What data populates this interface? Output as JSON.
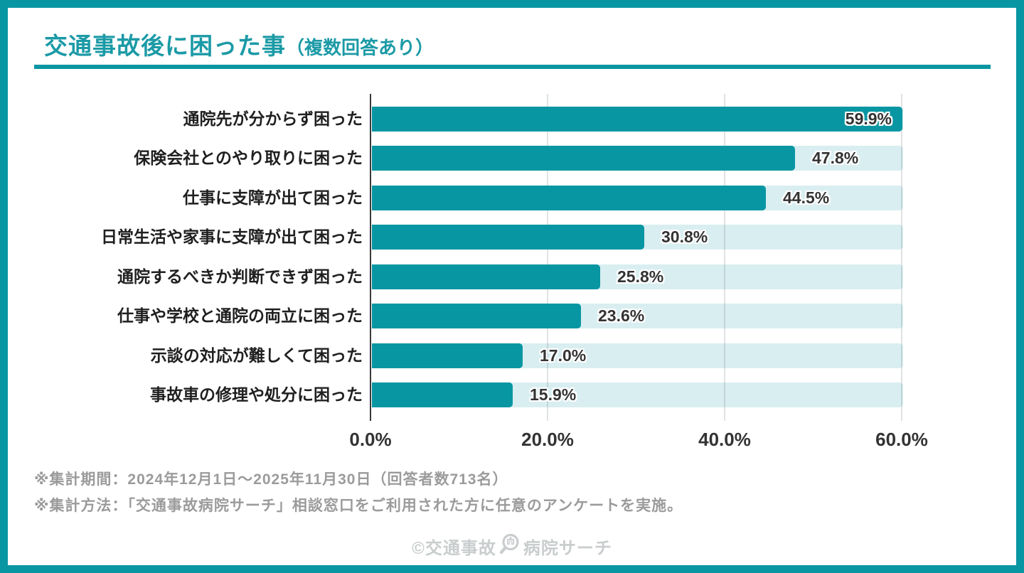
{
  "header": {
    "title": "交通事故後に困った事",
    "title_suffix": "（複数回答あり）"
  },
  "chart_data": {
    "type": "bar",
    "orientation": "horizontal",
    "title": "交通事故後に困った事（複数回答あり）",
    "categories": [
      "通院先が分からず困った",
      "保険会社とのやり取りに困った",
      "仕事に支障が出て困った",
      "日常生活や家事に支障が出て困った",
      "通院するべきか判断できず困った",
      "仕事や学校と通院の両立に困った",
      "示談の対応が難しくて困った",
      "事故車の修理や処分に困った"
    ],
    "values": [
      59.9,
      47.8,
      44.5,
      30.8,
      25.8,
      23.6,
      17.0,
      15.9
    ],
    "value_labels": [
      "59.9%",
      "47.8%",
      "44.5%",
      "30.8%",
      "25.8%",
      "23.6%",
      "17.0%",
      "15.9%"
    ],
    "x_ticks": [
      "0.0%",
      "20.0%",
      "40.0%",
      "60.0%"
    ],
    "x_tick_values": [
      0,
      20,
      40,
      60
    ],
    "xlim": [
      0,
      60
    ],
    "grid": true,
    "legend_position": "none",
    "bar_color": "#0996a3",
    "track_color": "#d9eef1"
  },
  "footnotes": {
    "line1": "※集計期間：2024年12月1日～2025年11月30日（回答者数713名）",
    "line2": "※集計方法：「交通事故病院サーチ」相談窓口をご利用された方に任意のアンケートを実施。"
  },
  "watermark": {
    "prefix": "©交通事故",
    "suffix": "病院サーチ",
    "icon": "magnifier-hospital-icon"
  },
  "colors": {
    "accent": "#0996a3",
    "title": "#1b9aa6",
    "text": "#333333",
    "muted": "#9b9b9b",
    "watermark": "#c9cdce",
    "grid": "#dfe4e5"
  }
}
